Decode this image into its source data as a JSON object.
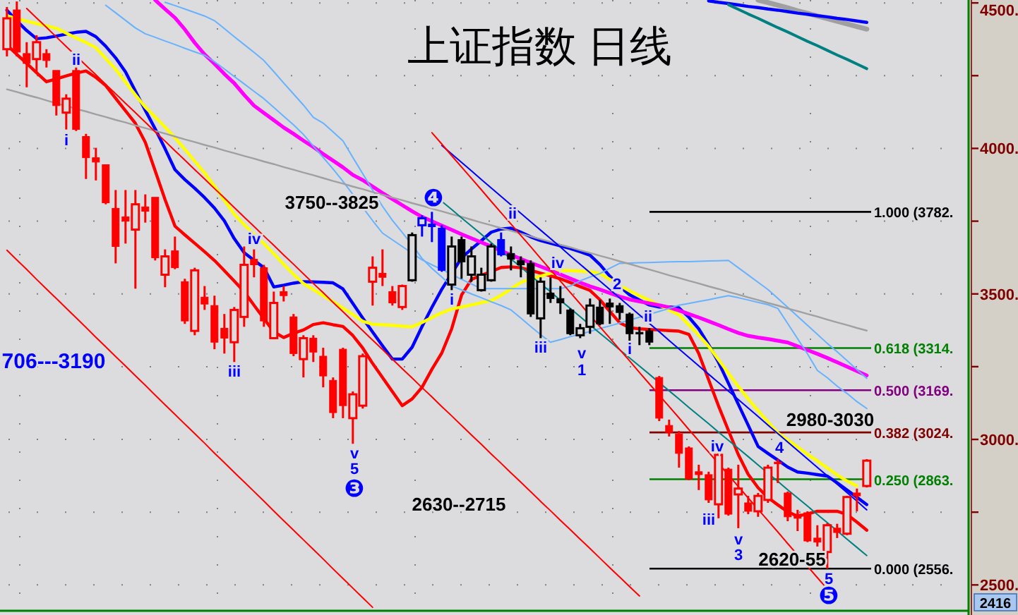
{
  "chart_data": {
    "type": "candlestick",
    "title": "上证指数  日线",
    "categories": [
      null,
      null,
      null,
      null,
      null,
      null,
      null,
      null,
      null,
      null,
      null,
      null,
      null,
      null,
      null,
      null,
      null,
      null,
      null,
      null,
      null,
      null,
      null,
      null,
      null,
      null,
      null,
      null,
      null,
      null,
      null,
      null,
      null,
      null,
      null,
      null,
      null,
      null,
      null,
      null,
      null,
      null,
      null,
      null,
      null,
      null,
      null,
      null,
      null,
      null,
      null,
      null,
      null,
      null,
      null,
      null,
      null,
      null,
      null,
      null,
      null,
      null,
      null,
      null,
      null,
      null,
      null,
      null,
      null,
      null,
      null,
      null,
      null,
      null,
      null,
      null,
      null,
      null,
      null,
      null,
      null,
      null,
      null,
      null,
      null,
      null,
      null,
      null
    ],
    "ohlc": [
      [
        4341,
        4486,
        4316,
        4447
      ],
      [
        4476,
        4505,
        4316,
        4331
      ],
      [
        4326,
        4365,
        4210,
        4292
      ],
      [
        4307,
        4389,
        4258,
        4365
      ],
      [
        4326,
        4341,
        4278,
        4302
      ],
      [
        4268,
        4268,
        4113,
        4147
      ],
      [
        4123,
        4186,
        4065,
        4171
      ],
      [
        4268,
        4278,
        4060,
        4065
      ],
      [
        4041,
        4050,
        3895,
        3968
      ],
      [
        3968,
        4002,
        3890,
        3953
      ],
      [
        3944,
        3944,
        3808,
        3813
      ],
      [
        3794,
        3857,
        3605,
        3663
      ],
      [
        3765,
        3857,
        3673,
        3750
      ],
      [
        3721,
        3857,
        3518,
        3808
      ],
      [
        3799,
        3842,
        3745,
        3784
      ],
      [
        3832,
        3832,
        3615,
        3624
      ],
      [
        3566,
        3653,
        3523,
        3629
      ],
      [
        3648,
        3697,
        3585,
        3590
      ],
      [
        3542,
        3552,
        3397,
        3407
      ],
      [
        3373,
        3590,
        3358,
        3581
      ],
      [
        3489,
        3527,
        3445,
        3465
      ],
      [
        3460,
        3494,
        3310,
        3334
      ],
      [
        3382,
        3431,
        3295,
        3348
      ],
      [
        3334,
        3455,
        3266,
        3445
      ],
      [
        3421,
        3663,
        3387,
        3600
      ],
      [
        3619,
        3653,
        3557,
        3600
      ],
      [
        3590,
        3600,
        3387,
        3407
      ],
      [
        3348,
        3508,
        3345,
        3469
      ],
      [
        3508,
        3527,
        3474,
        3494
      ],
      [
        3421,
        3431,
        3286,
        3295
      ],
      [
        3276,
        3358,
        3213,
        3348
      ],
      [
        3348,
        3358,
        3266,
        3300
      ],
      [
        3286,
        3315,
        3179,
        3218
      ],
      [
        3203,
        3213,
        3073,
        3092
      ],
      [
        3310,
        3315,
        3073,
        3116
      ],
      [
        3073,
        3165,
        2985,
        3155
      ],
      [
        3116,
        3295,
        3106,
        3286
      ],
      [
        3542,
        3629,
        3460,
        3590
      ],
      [
        3571,
        3653,
        3527,
        3557
      ],
      [
        3508,
        3527,
        3460,
        3469
      ],
      [
        3455,
        3532,
        3445,
        3527
      ],
      [
        3547,
        3711,
        3542,
        3702
      ],
      [
        3736,
        3770,
        3697,
        3760
      ],
      [
        3740,
        3782,
        3678,
        3731
      ],
      [
        3726,
        3736,
        3576,
        3581
      ],
      [
        3532,
        3697,
        3513,
        3663
      ],
      [
        3687,
        3697,
        3552,
        3610
      ],
      [
        3566,
        3663,
        3542,
        3629
      ],
      [
        3513,
        3590,
        3508,
        3566
      ],
      [
        3547,
        3673,
        3542,
        3663
      ],
      [
        3687,
        3711,
        3629,
        3634
      ],
      [
        3639,
        3663,
        3581,
        3619
      ],
      [
        3615,
        3629,
        3557,
        3600
      ],
      [
        3605,
        3615,
        3421,
        3431
      ],
      [
        3416,
        3557,
        3348,
        3542
      ],
      [
        3503,
        3557,
        3469,
        3484
      ],
      [
        3484,
        3527,
        3431,
        3469
      ],
      [
        3445,
        3450,
        3358,
        3363
      ],
      [
        3358,
        3397,
        3348,
        3382
      ],
      [
        3387,
        3484,
        3363,
        3460
      ],
      [
        3455,
        3479,
        3392,
        3397
      ],
      [
        3469,
        3484,
        3397,
        3455
      ],
      [
        3460,
        3469,
        3411,
        3436
      ],
      [
        3431,
        3436,
        3339,
        3363
      ],
      [
        3368,
        3387,
        3324,
        3363
      ],
      [
        3373,
        3382,
        3324,
        3334
      ],
      [
        3213,
        3218,
        3063,
        3073
      ],
      [
        3048,
        3068,
        3010,
        3024
      ],
      [
        3019,
        3029,
        2903,
        2952
      ],
      [
        2971,
        2976,
        2860,
        2864
      ],
      [
        2889,
        2913,
        2826,
        2879
      ],
      [
        2879,
        2889,
        2782,
        2792
      ],
      [
        2777,
        2952,
        2729,
        2947
      ],
      [
        2898,
        2903,
        2738,
        2743
      ],
      [
        2811,
        2913,
        2695,
        2831
      ],
      [
        2782,
        2806,
        2743,
        2753
      ],
      [
        2753,
        2816,
        2734,
        2806
      ],
      [
        2792,
        2913,
        2782,
        2903
      ],
      [
        2922,
        2932,
        2850,
        2918
      ],
      [
        2816,
        2821,
        2719,
        2734
      ],
      [
        2743,
        2758,
        2685,
        2729
      ],
      [
        2748,
        2753,
        2647,
        2651
      ],
      [
        2661,
        2705,
        2632,
        2647
      ],
      [
        2613,
        2712,
        2556,
        2705
      ],
      [
        2695,
        2710,
        2661,
        2680
      ],
      [
        2676,
        2806,
        2671,
        2802
      ],
      [
        2816,
        2831,
        2753,
        2806
      ],
      [
        2840,
        2932,
        2835,
        2927
      ]
    ],
    "colors": [
      "#ff0000",
      "#ff0000",
      "#ff0000",
      "#ff0000",
      "#ff0000",
      "#ff0000",
      "#ff0000",
      "#ff0000",
      "#ff0000",
      "#ff0000",
      "#ff0000",
      "#ff0000",
      "#ff0000",
      "#ff0000",
      "#ff0000",
      "#ff0000",
      "#ff0000",
      "#ff0000",
      "#ff0000",
      "#ff0000",
      "#ff0000",
      "#ff0000",
      "#ff0000",
      "#ff0000",
      "#ff0000",
      "#ff0000",
      "#ff0000",
      "#ff0000",
      "#ff0000",
      "#ff0000",
      "#ff0000",
      "#ff0000",
      "#ff0000",
      "#ff0000",
      "#ff0000",
      "#ff0000",
      "#ff0000",
      "#ff0000",
      "#ff0000",
      "#ff0000",
      "#ff0000",
      "#000000",
      "#0000ff",
      "#0000ff",
      "#0000ff",
      "#000000",
      "#000000",
      "#000000",
      "#000000",
      "#000000",
      "#0000ff",
      "#000000",
      "#000000",
      "#000000",
      "#000000",
      "#000000",
      "#000000",
      "#000000",
      "#000000",
      "#000000",
      "#000000",
      "#000000",
      "#000000",
      "#000000",
      "#000000",
      "#000000",
      "#ff0000",
      "#ff0000",
      "#ff0000",
      "#ff0000",
      "#ff0000",
      "#ff0000",
      "#ff0000",
      "#ff0000",
      "#ff0000",
      "#ff0000",
      "#ff0000",
      "#ff0000",
      "#ff0000",
      "#ff0000",
      "#ff0000",
      "#ff0000",
      "#ff0000",
      "#ff0000",
      "#ff0000",
      "#ff0000",
      "#ff0000",
      "#ff0000"
    ],
    "series": [
      {
        "type": "line",
        "color": "#ff0000",
        "values": [
          4355,
          4323,
          4292,
          4260,
          4229,
          4239,
          4249,
          4259,
          4266,
          4244,
          4216,
          4172,
          4129,
          4086,
          4021,
          3923,
          3824,
          3733,
          3703,
          3674,
          3645,
          3615,
          3580,
          3544,
          3508,
          3461,
          3415,
          3370,
          3350,
          3365,
          3376,
          3395,
          3401,
          3394,
          3388,
          3357,
          3314,
          3261,
          3213,
          3164,
          3116,
          3139,
          3179,
          3241,
          3297,
          3380,
          3496,
          3550,
          3564,
          3577,
          3591,
          3593,
          3590,
          3581,
          3571,
          3562,
          3552,
          3539,
          3525,
          3512,
          3480,
          3440,
          3401,
          3384,
          3380,
          3378,
          3376,
          3374,
          3372,
          3361,
          3295,
          3205,
          3115,
          3031,
          2948,
          2880,
          2834,
          2800,
          2775,
          2751,
          2736,
          2744,
          2753,
          2753,
          2753,
          2742,
          2716,
          2688
        ]
      },
      {
        "type": "line",
        "color": "#0000ff",
        "values": [
          4475,
          4438,
          4405,
          4377,
          4380,
          4386,
          4393,
          4399,
          4402,
          4384,
          4351,
          4311,
          4263,
          4197,
          4131,
          4067,
          3999,
          3927,
          3893,
          3863,
          3831,
          3795,
          3751,
          3690,
          3642,
          3616,
          3590,
          3524,
          3530,
          3537,
          3542,
          3541,
          3540,
          3538,
          3517,
          3467,
          3417,
          3369,
          3322,
          3276,
          3276,
          3317,
          3388,
          3454,
          3516,
          3570,
          3624,
          3654,
          3683,
          3712,
          3723,
          3726,
          3712,
          3696,
          3683,
          3674,
          3665,
          3656,
          3645,
          3633,
          3601,
          3561,
          3526,
          3497,
          3479,
          3462,
          3455,
          3455,
          3452,
          3420,
          3380,
          3325,
          3265,
          3193,
          3121,
          3049,
          2976,
          2952,
          2929,
          2905,
          2888,
          2884,
          2879,
          2874,
          2851,
          2826,
          2801,
          2776
        ]
      },
      {
        "type": "line",
        "color": "#ffff00",
        "values": [
          4456,
          4446,
          4437,
          4429,
          4421,
          4413,
          4396,
          4380,
          4364,
          4346,
          4309,
          4272,
          4228,
          4184,
          4142,
          4108,
          4073,
          4037,
          3997,
          3956,
          3916,
          3870,
          3822,
          3774,
          3738,
          3706,
          3673,
          3638,
          3602,
          3567,
          3536,
          3515,
          3494,
          3473,
          3451,
          3429,
          3406,
          3396,
          3394,
          3392,
          3389,
          3387,
          3402,
          3419,
          3435,
          3448,
          3455,
          3462,
          3470,
          3477,
          3495,
          3517,
          3540,
          3551,
          3561,
          3571,
          3581,
          3580,
          3578,
          3577,
          3570,
          3550,
          3530,
          3510,
          3494,
          3478,
          3461,
          3445,
          3428,
          3393,
          3358,
          3320,
          3274,
          3228,
          3182,
          3139,
          3099,
          3060,
          3022,
          2998,
          2974,
          2949,
          2926,
          2902,
          2878,
          2857,
          2840,
          null
        ]
      },
      {
        "type": "line",
        "color": "#ff00ff",
        "values": [
          null,
          null,
          null,
          null,
          null,
          null,
          null,
          null,
          null,
          null,
          null,
          null,
          null,
          null,
          null,
          4510,
          4479,
          4449,
          4409,
          4363,
          4323,
          4291,
          4256,
          4224,
          4184,
          4147,
          4122,
          4097,
          4072,
          4050,
          4027,
          4005,
          3981,
          3958,
          3935,
          3909,
          3891,
          3869,
          3847,
          3826,
          3805,
          3784,
          3765,
          3750,
          3735,
          3720,
          3705,
          3691,
          3677,
          3663,
          3648,
          3634,
          3620,
          3607,
          3594,
          3581,
          3567,
          3553,
          3539,
          3526,
          3515,
          3503,
          3491,
          3481,
          3474,
          3468,
          3461,
          3454,
          3443,
          3431,
          3419,
          3406,
          3393,
          3379,
          3366,
          3356,
          3350,
          3345,
          3339,
          3333,
          3320,
          3307,
          3294,
          3280,
          3265,
          3250,
          3235,
          3220
        ]
      },
      {
        "type": "line",
        "color": "#66b2ff",
        "values": [
          null,
          null,
          null,
          null,
          null,
          null,
          null,
          null,
          null,
          null,
          4492,
          4466,
          4440,
          4414,
          4394,
          4382,
          4369,
          4357,
          4344,
          4332,
          4320,
          4298,
          4273,
          4247,
          4222,
          4196,
          4171,
          4141,
          4111,
          4081,
          4048,
          4008,
          3969,
          3929,
          3887,
          3842,
          3797,
          3752,
          3709,
          3686,
          3663,
          3640,
          3617,
          3600,
          3584,
          3567,
          3550,
          3534,
          3518,
          3518,
          3518,
          3518,
          3518,
          3518,
          3518,
          3518,
          3518,
          3527,
          3545,
          3558,
          3570,
          3588,
          3605,
          3606,
          3607,
          3608,
          3609,
          3610,
          3611,
          3611,
          3612,
          3613,
          3614,
          3615,
          3590,
          3565,
          3540,
          3515,
          3485,
          3454,
          3423,
          3392,
          3361,
          3330,
          3301,
          3271,
          3240,
          3210
        ]
      },
      {
        "type": "line",
        "color": "#66b2ff",
        "values": [
          null,
          null,
          null,
          null,
          null,
          null,
          null,
          null,
          null,
          null,
          null,
          null,
          null,
          null,
          null,
          null,
          4502,
          4491,
          4479,
          4467,
          4455,
          4439,
          4412,
          4384,
          4357,
          4330,
          4302,
          4264,
          4225,
          4187,
          4149,
          4107,
          4087,
          4057,
          4026,
          3969,
          3913,
          3857,
          3801,
          3753,
          3711,
          3668,
          3622,
          3588,
          3558,
          3527,
          3514,
          3500,
          3487,
          3473,
          3460,
          3445,
          3417,
          3388,
          3360,
          3334,
          3343,
          3353,
          3362,
          3371,
          3381,
          3390,
          3400,
          3410,
          3420,
          3430,
          3440,
          3450,
          3461,
          3467,
          3474,
          3480,
          3487,
          3494,
          3487,
          3479,
          3471,
          3463,
          3450,
          3398,
          3346,
          3294,
          3237,
          3212,
          3183,
          3158,
          3130,
          3106
        ]
      },
      {
        "type": "line",
        "color": "#a0a0a0",
        "values": [
          4203,
          4194,
          4184,
          4175,
          4165,
          4155,
          4146,
          4136,
          4127,
          4117,
          4108,
          4098,
          4089,
          4079,
          4070,
          4060,
          4051,
          4041,
          4031,
          4022,
          4012,
          4003,
          3993,
          3984,
          3974,
          3965,
          3955,
          3946,
          3936,
          3927,
          3917,
          3908,
          3898,
          3888,
          3879,
          3869,
          3860,
          3850,
          3841,
          3831,
          3822,
          3812,
          3803,
          3793,
          3784,
          3774,
          3765,
          3755,
          3745,
          3736,
          3726,
          3717,
          3707,
          3698,
          3688,
          3679,
          3669,
          3660,
          3650,
          3641,
          3631,
          3622,
          3612,
          3603,
          3593,
          3584,
          3574,
          3564,
          3555,
          3545,
          3536,
          3526,
          3517,
          3507,
          3498,
          3488,
          3479,
          3469,
          3460,
          3450,
          3441,
          3431,
          3422,
          3412,
          3402,
          3393,
          3383,
          3374
        ]
      },
      {
        "type": "line",
        "color": "#a0a0a0",
        "values": [
          null,
          null,
          null,
          null,
          null,
          null,
          null,
          null,
          null,
          null,
          null,
          null,
          null,
          null,
          null,
          null,
          null,
          null,
          null,
          null,
          null,
          null,
          null,
          null,
          null,
          null,
          null,
          null,
          null,
          null,
          null,
          null,
          null,
          null,
          null,
          null,
          null,
          null,
          null,
          null,
          null,
          null,
          null,
          null,
          null,
          null,
          null,
          null,
          null,
          null,
          null,
          null,
          null,
          null,
          null,
          null,
          null,
          null,
          null,
          null,
          null,
          null,
          null,
          null,
          null,
          null,
          null,
          null,
          null,
          null,
          null,
          null,
          null,
          null,
          null,
          null,
          4510,
          4501,
          4492,
          4483,
          4473,
          4464,
          4455,
          4446,
          4437,
          4428,
          4419,
          4410
        ]
      },
      {
        "type": "line",
        "color": "#0000ff",
        "values": [
          null,
          null,
          null,
          null,
          null,
          null,
          null,
          null,
          null,
          null,
          null,
          null,
          null,
          null,
          null,
          null,
          null,
          null,
          null,
          null,
          null,
          null,
          null,
          null,
          null,
          null,
          null,
          null,
          null,
          null,
          null,
          null,
          null,
          null,
          null,
          null,
          null,
          null,
          null,
          null,
          null,
          null,
          null,
          null,
          null,
          null,
          null,
          null,
          null,
          null,
          null,
          null,
          null,
          null,
          null,
          null,
          null,
          null,
          null,
          null,
          null,
          null,
          null,
          null,
          null,
          null,
          null,
          null,
          null,
          null,
          null,
          4507,
          4502,
          4498,
          4493,
          4488,
          4484,
          4479,
          4475,
          4470,
          4465,
          4461,
          4456,
          4452,
          4447,
          4443,
          4438,
          4433
        ]
      },
      {
        "type": "line",
        "color": "#008080",
        "values": [
          null,
          null,
          null,
          null,
          null,
          null,
          null,
          null,
          null,
          null,
          null,
          null,
          null,
          null,
          null,
          null,
          null,
          null,
          null,
          null,
          null,
          null,
          null,
          null,
          null,
          null,
          null,
          null,
          null,
          null,
          null,
          null,
          null,
          null,
          null,
          null,
          null,
          null,
          null,
          null,
          null,
          null,
          null,
          null,
          null,
          null,
          null,
          null,
          null,
          null,
          null,
          null,
          null,
          null,
          null,
          null,
          null,
          null,
          null,
          null,
          null,
          null,
          null,
          null,
          null,
          null,
          null,
          null,
          null,
          null,
          null,
          null,
          null,
          4494,
          4478,
          4462,
          4447,
          4431,
          4415,
          4400,
          4384,
          4368,
          4353,
          4337,
          4321,
          4306,
          4290,
          4274
        ]
      },
      {
        "type": "line",
        "color": "#008080",
        "values": [
          null,
          null,
          null,
          null,
          null,
          null,
          null,
          null,
          null,
          null,
          null,
          null,
          null,
          null,
          null,
          null,
          null,
          null,
          null,
          null,
          null,
          null,
          null,
          null,
          null,
          null,
          null,
          null,
          null,
          null,
          null,
          null,
          null,
          null,
          null,
          null,
          null,
          null,
          null,
          null,
          null,
          null,
          null,
          null,
          3818,
          3790,
          3761,
          3733,
          3705,
          3676,
          3648,
          3620,
          3592,
          3563,
          3535,
          3507,
          3478,
          3450,
          3422,
          3393,
          3365,
          3337,
          3308,
          3280,
          3252,
          3224,
          3195,
          3167,
          3139,
          3110,
          3082,
          3054,
          3025,
          2997,
          2969,
          2941,
          2912,
          2884,
          2856,
          2827,
          2799,
          2771,
          2742,
          2714,
          2686,
          2657,
          2629,
          2601
        ]
      },
      {
        "type": "line",
        "color": "#0000ff",
        "values": [
          null,
          null,
          null,
          null,
          null,
          null,
          null,
          null,
          null,
          null,
          null,
          null,
          null,
          null,
          null,
          null,
          null,
          null,
          null,
          null,
          null,
          null,
          null,
          null,
          null,
          null,
          null,
          null,
          null,
          null,
          null,
          null,
          null,
          null,
          null,
          null,
          null,
          null,
          null,
          null,
          null,
          null,
          null,
          null,
          4010,
          3981,
          3952,
          3923,
          3893,
          3864,
          3835,
          3806,
          3777,
          3748,
          3719,
          3690,
          3661,
          3631,
          3602,
          3573,
          3544,
          3515,
          3486,
          3457,
          3428,
          3399,
          3370,
          3340,
          3311,
          3282,
          3253,
          3224,
          3195,
          3166,
          3137,
          3108,
          3079,
          3049,
          3020,
          2991,
          2962,
          2933,
          2904,
          2875,
          2846,
          2817,
          2788,
          2758
        ]
      },
      {
        "type": "line",
        "color": "#ff0000",
        "values": [
          null,
          null,
          4481,
          4448,
          4416,
          4383,
          4350,
          4318,
          4285,
          4253,
          4220,
          4188,
          4155,
          4123,
          4090,
          4057,
          4025,
          3992,
          3960,
          3927,
          3895,
          3862,
          3830,
          3797,
          3764,
          3732,
          3699,
          3667,
          3634,
          3602,
          3569,
          3536,
          3504,
          3471,
          3439,
          3406,
          3374,
          3341,
          3309,
          3276,
          3243,
          3211,
          3178,
          3146,
          3113,
          3081,
          3048,
          3015,
          2983,
          2950,
          2918,
          2885,
          2853,
          2820,
          2787,
          2755,
          2722,
          2690,
          2657,
          2625,
          2592,
          2559,
          2527,
          2494,
          2462,
          null,
          null,
          null,
          null,
          null,
          null,
          null,
          null,
          null,
          null,
          null,
          null,
          null,
          null,
          null,
          null,
          null,
          null,
          null,
          null,
          null,
          null,
          null
        ]
      },
      {
        "type": "line",
        "color": "#ff0000",
        "values": [
          null,
          null,
          null,
          null,
          null,
          null,
          null,
          null,
          null,
          null,
          null,
          null,
          null,
          null,
          null,
          null,
          null,
          null,
          null,
          null,
          null,
          null,
          null,
          null,
          null,
          null,
          null,
          null,
          null,
          null,
          null,
          null,
          null,
          null,
          null,
          null,
          null,
          null,
          null,
          null,
          null,
          null,
          null,
          4054,
          4015,
          3975,
          3936,
          3897,
          3858,
          3818,
          3779,
          3740,
          3701,
          3662,
          3622,
          3583,
          3544,
          3505,
          3466,
          3426,
          3387,
          3348,
          3309,
          3270,
          3230,
          3191,
          3152,
          3113,
          3074,
          3034,
          2995,
          2956,
          2917,
          2878,
          2838,
          2799,
          2760,
          2721,
          2682,
          2642,
          2603,
          2564,
          2525,
          2486,
          null,
          null,
          null,
          null
        ]
      },
      {
        "type": "line",
        "color": "#ff0000",
        "values": [
          3650,
          3617,
          3584,
          3550,
          3517,
          3484,
          3451,
          3418,
          3385,
          3351,
          3318,
          3285,
          3252,
          3219,
          3186,
          3152,
          3119,
          3086,
          3053,
          3020,
          2987,
          2953,
          2920,
          2887,
          2854,
          2821,
          2788,
          2754,
          2721,
          2688,
          2655,
          2622,
          2589,
          2555,
          2522,
          2489,
          2456,
          2423,
          null,
          null,
          null,
          null,
          null,
          null,
          null,
          null,
          null,
          null,
          null,
          null,
          null,
          null,
          null,
          null,
          null,
          null,
          null,
          null,
          null,
          null,
          null,
          null,
          null,
          null,
          null,
          null,
          null,
          null,
          null,
          null,
          null,
          null,
          null,
          null,
          null,
          null,
          null,
          null,
          null,
          null,
          null,
          null,
          null,
          null,
          null,
          null,
          null,
          null
        ]
      }
    ],
    "ylim": [
      2416,
      4510
    ],
    "yticks": [
      {
        "value": 2500,
        "label": "2500."
      },
      {
        "value": 2750,
        "label": null
      },
      {
        "value": 3000,
        "label": "3000."
      },
      {
        "value": 3250,
        "label": null
      },
      {
        "value": 3500,
        "label": "3500."
      },
      {
        "value": 3750,
        "label": null
      },
      {
        "value": 4000,
        "label": "4000."
      },
      {
        "value": 4250,
        "label": null
      },
      {
        "value": 4500,
        "label": "4500."
      }
    ],
    "grid": true,
    "tick_labels": "y",
    "ref_lines": [
      {
        "axis": "y",
        "value": 3782,
        "label": "1.000 (3782.",
        "color": "#000000"
      },
      {
        "axis": "y",
        "value": 3314,
        "label": "0.618 (3314.",
        "color": "#008000"
      },
      {
        "axis": "y",
        "value": 3169,
        "label": "0.500 (3169.",
        "color": "#800080"
      },
      {
        "axis": "y",
        "value": 3024,
        "label": "0.382 (3024.",
        "color": "#800000"
      },
      {
        "axis": "y",
        "value": 2863,
        "label": "0.250 (2863.",
        "color": "#008000"
      },
      {
        "axis": "y",
        "value": 2556,
        "label": "0.000 (2556.",
        "color": "#000000"
      }
    ],
    "annotations": [
      "ii",
      "i",
      "iv",
      "iii",
      "v",
      "5",
      "❸",
      "❹",
      "i",
      "ii",
      "iii",
      "iv",
      "v",
      "1",
      "2",
      "i",
      "ii",
      "iv",
      "iii",
      "4",
      "v",
      "3",
      "5",
      "❺",
      "706---3190",
      "3750--3825",
      "2630--2715",
      "2980-3030",
      "2620-55",
      "2416"
    ]
  }
}
